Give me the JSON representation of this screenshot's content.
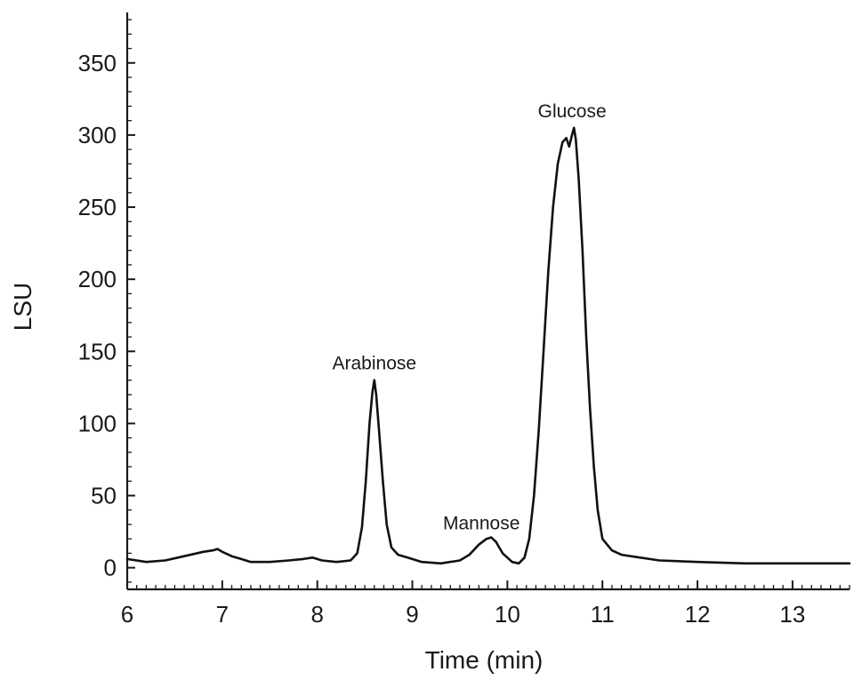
{
  "chart_data": {
    "type": "line",
    "title": "",
    "xlabel": "Time (min)",
    "ylabel": "LSU",
    "xlim": [
      6,
      13.6
    ],
    "ylim": [
      -15,
      385
    ],
    "x_ticks": [
      6,
      7,
      8,
      9,
      10,
      11,
      12,
      13
    ],
    "y_ticks": [
      0,
      50,
      100,
      150,
      200,
      250,
      300,
      350
    ],
    "grid": false,
    "legend": "none",
    "series": [
      {
        "color": "#111111",
        "x": [
          6.0,
          6.2,
          6.4,
          6.6,
          6.8,
          6.9,
          6.95,
          7.0,
          7.1,
          7.2,
          7.3,
          7.5,
          7.7,
          7.85,
          7.95,
          8.05,
          8.2,
          8.35,
          8.42,
          8.47,
          8.51,
          8.55,
          8.58,
          8.6,
          8.62,
          8.65,
          8.69,
          8.73,
          8.78,
          8.85,
          8.95,
          9.1,
          9.3,
          9.5,
          9.6,
          9.7,
          9.78,
          9.83,
          9.88,
          9.95,
          10.05,
          10.12,
          10.18,
          10.23,
          10.28,
          10.33,
          10.38,
          10.43,
          10.48,
          10.53,
          10.58,
          10.62,
          10.65,
          10.68,
          10.7,
          10.72,
          10.75,
          10.79,
          10.83,
          10.87,
          10.91,
          10.95,
          11.0,
          11.1,
          11.2,
          11.4,
          11.6,
          12.0,
          12.5,
          13.0,
          13.6
        ],
        "y": [
          6,
          4,
          5,
          8,
          11,
          12,
          13,
          11,
          8,
          6,
          4,
          4,
          5,
          6,
          7,
          5,
          4,
          5,
          10,
          28,
          60,
          100,
          122,
          130,
          120,
          95,
          60,
          30,
          14,
          9,
          7,
          4,
          3,
          5,
          9,
          16,
          20,
          21,
          18,
          10,
          4,
          3,
          7,
          20,
          50,
          95,
          150,
          205,
          250,
          280,
          295,
          298,
          292,
          300,
          305,
          297,
          270,
          220,
          160,
          110,
          70,
          40,
          20,
          12,
          9,
          7,
          5,
          4,
          3,
          3,
          3
        ]
      }
    ],
    "annotations": [
      {
        "text": "Arabinose",
        "x": 8.6,
        "y": 130
      },
      {
        "text": "Mannose",
        "x": 9.83,
        "y": 21
      },
      {
        "text": "Glucose",
        "x": 10.7,
        "y": 305
      }
    ]
  }
}
